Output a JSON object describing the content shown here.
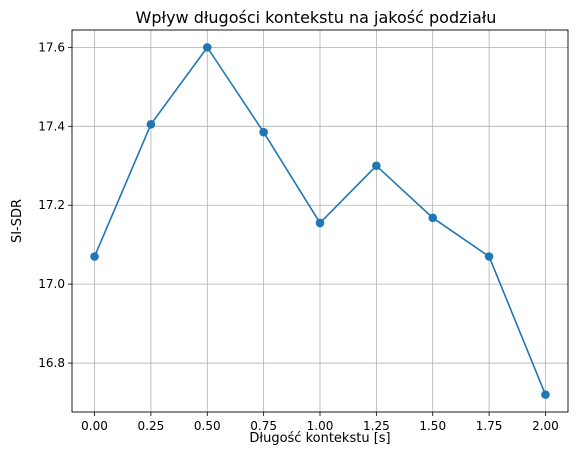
{
  "chart_data": {
    "type": "line",
    "title": "Wpływ długości kontekstu na jakość podziału",
    "xlabel": "Długość kontekstu [s]",
    "ylabel": "SI-SDR",
    "x": [
      0.0,
      0.25,
      0.5,
      0.75,
      1.0,
      1.25,
      1.5,
      1.75,
      2.0
    ],
    "series": [
      {
        "values": [
          17.07,
          17.405,
          17.6,
          17.385,
          17.155,
          17.3,
          17.168,
          17.07,
          16.72
        ]
      }
    ],
    "xticks": [
      0.0,
      0.25,
      0.5,
      0.75,
      1.0,
      1.25,
      1.5,
      1.75,
      2.0
    ],
    "xtick_labels": [
      "0.00",
      "0.25",
      "0.50",
      "0.75",
      "1.00",
      "1.25",
      "1.50",
      "1.75",
      "2.00"
    ],
    "yticks": [
      16.8,
      17.0,
      17.2,
      17.4,
      17.6
    ],
    "ytick_labels": [
      "16.8",
      "17.0",
      "17.2",
      "17.4",
      "17.6"
    ],
    "xlim": [
      -0.1,
      2.1
    ],
    "ylim": [
      16.676,
      17.644
    ],
    "grid": true,
    "marker": "circle",
    "line_color": "#1f77b4",
    "grid_color": "#b0b0b0"
  }
}
